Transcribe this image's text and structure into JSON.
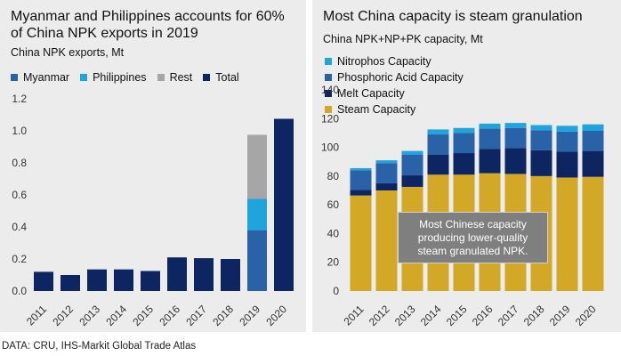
{
  "left": {
    "title": "Myanmar and Philippines accounts for 60% of China NPK exports in 2019",
    "subtitle": "China NPK exports, Mt",
    "legend": [
      {
        "label": "Myanmar",
        "color": "#2a62a8"
      },
      {
        "label": "Philippines",
        "color": "#1fa4dc"
      },
      {
        "label": "Rest",
        "color": "#a6a6a6"
      },
      {
        "label": "Total",
        "color": "#0d2561"
      }
    ]
  },
  "right": {
    "title": "Most China capacity is steam granulation",
    "subtitle": "China NPK+NP+PK capacity, Mt",
    "legend": [
      {
        "label": "Nitrophos Capacity",
        "color": "#1fa4dc"
      },
      {
        "label": "Phosphoric Acid Capacity",
        "color": "#2a62a8"
      },
      {
        "label": "Melt Capacity",
        "color": "#0d2561"
      },
      {
        "label": "Steam Capacity",
        "color": "#d4a827"
      }
    ],
    "callout": "Most Chinese capacity producing lower-quality steam granulated NPK."
  },
  "source": "DATA: CRU, IHS-Markit Global Trade Atlas",
  "chart_data": [
    {
      "type": "bar",
      "title": "Myanmar and Philippines accounts for 60% of China NPK exports in 2019",
      "subtitle": "China NPK exports, Mt",
      "categories": [
        "2011",
        "2012",
        "2013",
        "2014",
        "2015",
        "2016",
        "2017",
        "2018",
        "2019",
        "2020"
      ],
      "ylim": [
        0,
        1.2
      ],
      "yticks": [
        "0.0",
        "0.2",
        "0.4",
        "0.6",
        "0.8",
        "1.0",
        "1.2"
      ],
      "grid": false,
      "legend_position": "top",
      "series": [
        {
          "name": "Total",
          "color": "#0d2561",
          "values": [
            0.12,
            0.1,
            0.135,
            0.135,
            0.125,
            0.21,
            0.205,
            0.2,
            null,
            1.075
          ]
        },
        {
          "name": "Myanmar",
          "color": "#2a62a8",
          "values": [
            null,
            null,
            null,
            null,
            null,
            null,
            null,
            null,
            0.38,
            null
          ]
        },
        {
          "name": "Philippines",
          "color": "#1fa4dc",
          "values": [
            null,
            null,
            null,
            null,
            null,
            null,
            null,
            null,
            0.195,
            null
          ]
        },
        {
          "name": "Rest",
          "color": "#a6a6a6",
          "values": [
            null,
            null,
            null,
            null,
            null,
            null,
            null,
            null,
            0.4,
            null
          ]
        }
      ]
    },
    {
      "type": "bar",
      "stacked": true,
      "title": "Most China capacity is steam granulation",
      "subtitle": "China NPK+NP+PK capacity, Mt",
      "categories": [
        "2011",
        "2012",
        "2013",
        "2014",
        "2015",
        "2016",
        "2017",
        "2018",
        "2019",
        "2020"
      ],
      "ylim": [
        0,
        140
      ],
      "yticks": [
        "0",
        "20",
        "40",
        "60",
        "80",
        "100",
        "120",
        "140"
      ],
      "grid": false,
      "legend_position": "top",
      "series": [
        {
          "name": "Steam Capacity",
          "color": "#d4a827",
          "values": [
            66.5,
            70,
            72.5,
            81,
            81,
            82,
            81.5,
            80,
            79,
            79.5
          ]
        },
        {
          "name": "Melt Capacity",
          "color": "#0d2561",
          "values": [
            4,
            5,
            8,
            14,
            15,
            17,
            18,
            18,
            18,
            18
          ]
        },
        {
          "name": "Phosphoric Acid Capacity",
          "color": "#2a62a8",
          "values": [
            13.5,
            14,
            14.5,
            14,
            14,
            14,
            14,
            14,
            14,
            14
          ]
        },
        {
          "name": "Nitrophos Capacity",
          "color": "#1fa4dc",
          "values": [
            1.5,
            2,
            2.5,
            3.5,
            3.5,
            3.5,
            3.5,
            3.5,
            4,
            4.5
          ]
        }
      ]
    }
  ]
}
